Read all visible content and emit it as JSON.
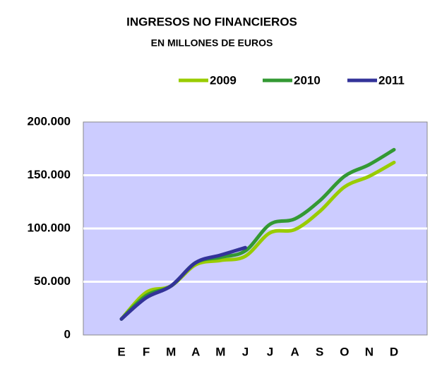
{
  "chart_data": {
    "type": "line",
    "title": "INGRESOS NO FINANCIEROS",
    "subtitle": "EN MILLONES DE EUROS",
    "categories": [
      "E",
      "F",
      "M",
      "A",
      "M",
      "J",
      "J",
      "A",
      "S",
      "O",
      "N",
      "D"
    ],
    "series": [
      {
        "name": "2009",
        "color": "#99cc00",
        "values": [
          15000,
          40000,
          46000,
          66000,
          70000,
          74000,
          96000,
          99000,
          116000,
          139000,
          149000,
          162000
        ]
      },
      {
        "name": "2010",
        "color": "#339933",
        "values": [
          15000,
          37000,
          46000,
          68000,
          73000,
          79000,
          104000,
          109000,
          126000,
          149000,
          160000,
          174000
        ]
      },
      {
        "name": "2011",
        "color": "#333399",
        "values": [
          15000,
          35000,
          46000,
          68000,
          75000,
          82000,
          null,
          null,
          null,
          null,
          null,
          null
        ]
      }
    ],
    "ylim": [
      0,
      200000
    ],
    "yticks": [
      0,
      {
        "value": 50000,
        "label": "50.000"
      },
      {
        "value": 100000,
        "label": "100.000"
      },
      {
        "value": 150000,
        "label": "150.000"
      },
      {
        "value": 200000,
        "label": "200.000"
      }
    ],
    "grid": true,
    "legend": "top-right"
  }
}
